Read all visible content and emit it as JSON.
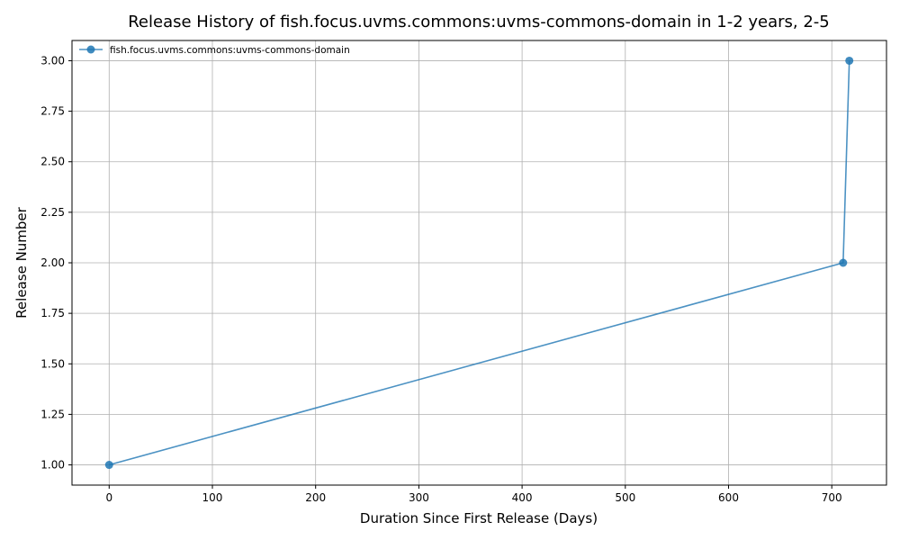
{
  "chart_data": {
    "type": "line",
    "title": "Release History of fish.focus.uvms.commons:uvms-commons-domain in 1-2 years, 2-5",
    "xlabel": "Duration Since First Release (Days)",
    "ylabel": "Release Number",
    "xlim": [
      -36,
      753
    ],
    "ylim": [
      0.9,
      3.1
    ],
    "xticks": [
      0,
      100,
      200,
      300,
      400,
      500,
      600,
      700
    ],
    "yticks": [
      1.0,
      1.25,
      1.5,
      1.75,
      2.0,
      2.25,
      2.5,
      2.75,
      3.0
    ],
    "xtick_labels": [
      "0",
      "100",
      "200",
      "300",
      "400",
      "500",
      "600",
      "700"
    ],
    "ytick_labels": [
      "1.00",
      "1.25",
      "1.50",
      "1.75",
      "2.00",
      "2.25",
      "2.50",
      "2.75",
      "3.00"
    ],
    "grid": true,
    "legend_position": "top-left",
    "series": [
      {
        "name": "fish.focus.uvms.commons:uvms-commons-domain",
        "color": "#1f77b4",
        "x": [
          0,
          711,
          717
        ],
        "y": [
          1,
          2,
          3
        ]
      }
    ]
  }
}
